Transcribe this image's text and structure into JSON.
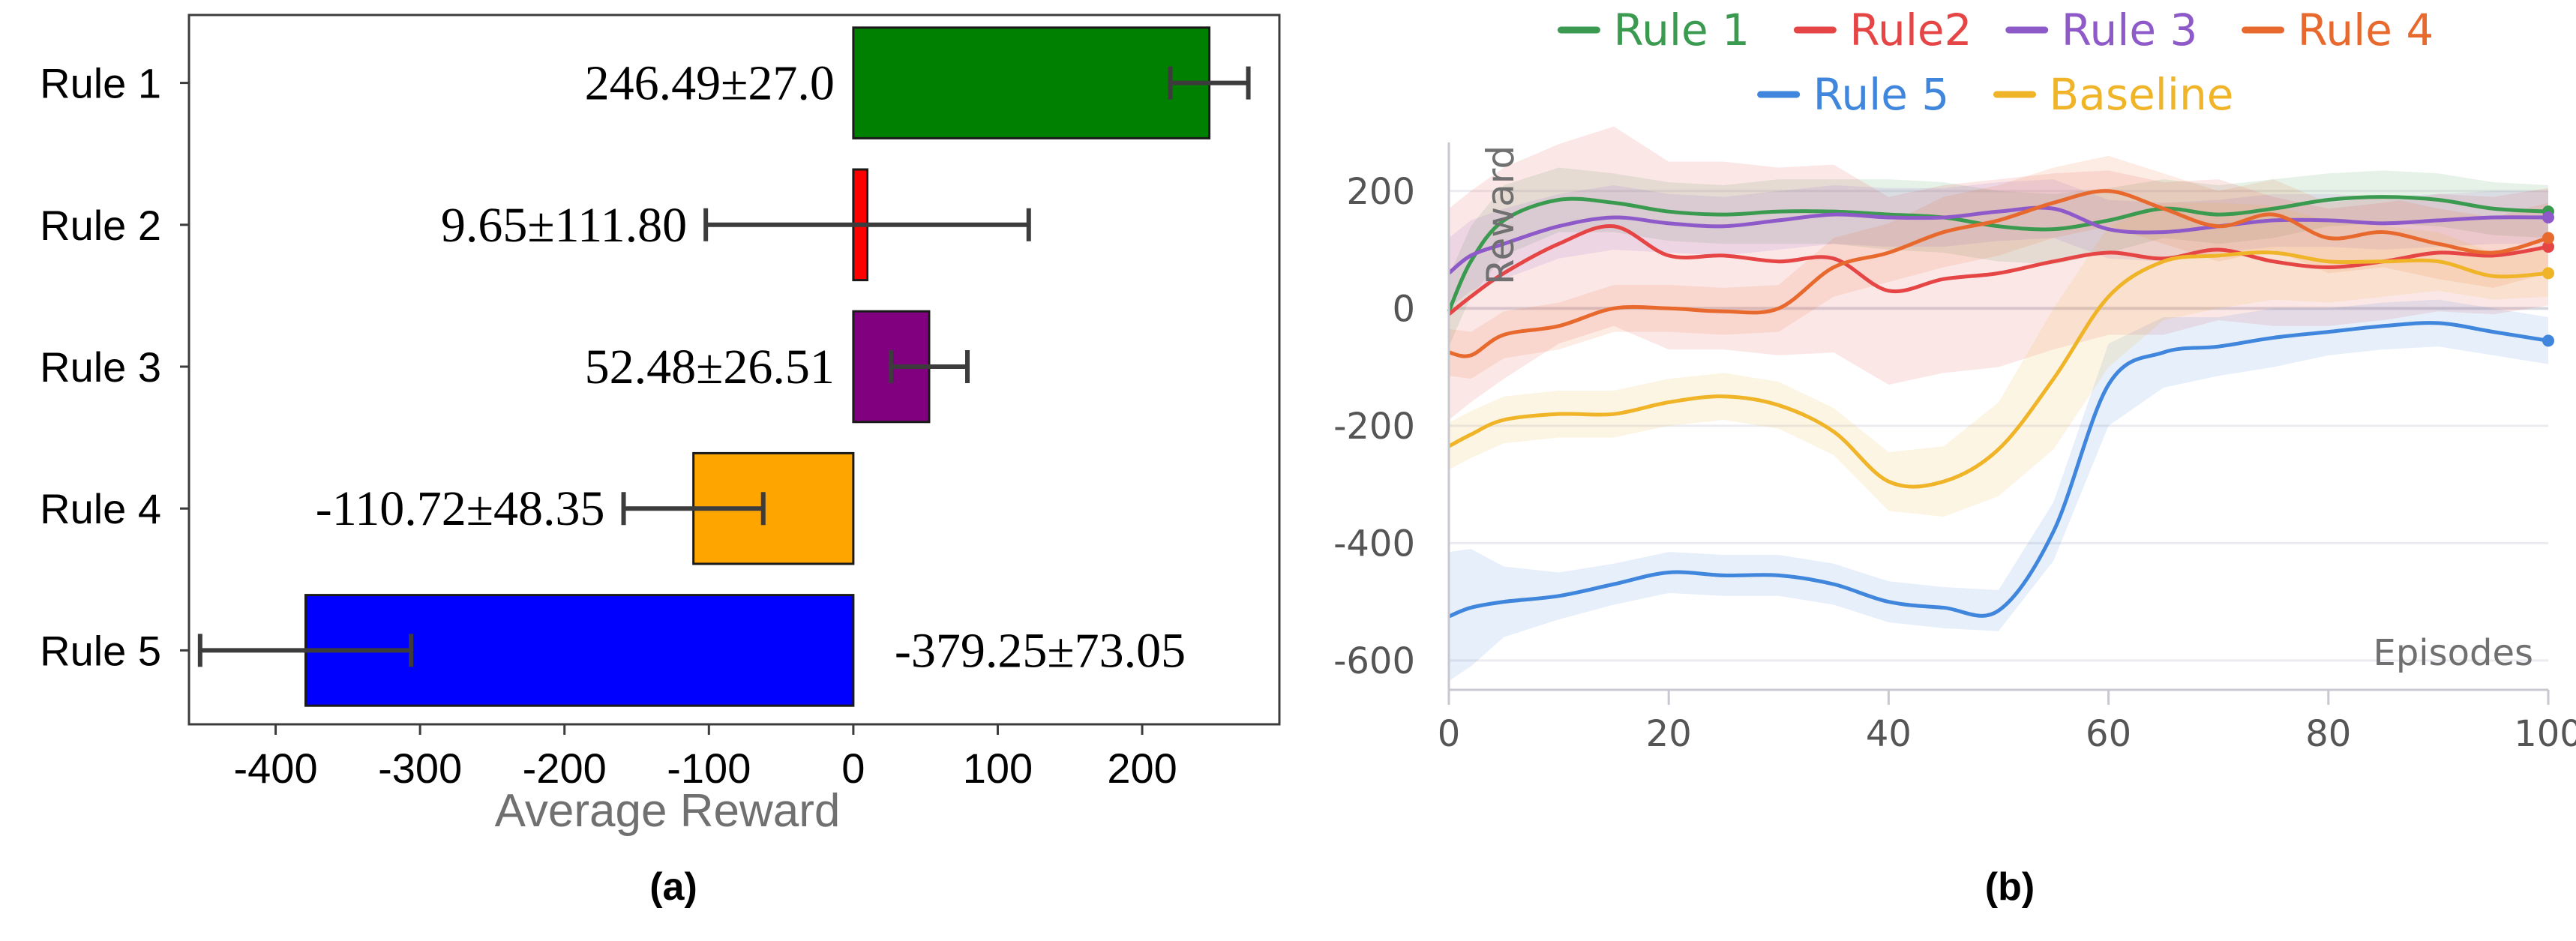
{
  "chart_data": [
    {
      "panel_label": "(a)",
      "type": "bar",
      "orientation": "horizontal",
      "categories": [
        "Rule 1",
        "Rule 2",
        "Rule 3",
        "Rule 4",
        "Rule 5"
      ],
      "values": [
        246.49,
        9.65,
        52.48,
        -110.72,
        -379.25
      ],
      "errors": [
        27.0,
        111.8,
        26.51,
        48.35,
        73.05
      ],
      "data_labels": [
        "246.49±27.0",
        "9.65±111.80",
        "52.48±26.51",
        "-110.72±48.35",
        "-379.25±73.05"
      ],
      "colors": [
        "#008000",
        "#ff0000",
        "#800080",
        "#ffa500",
        "#0000ff"
      ],
      "xlabel": "Average Reward",
      "ylabel": "",
      "xlim": [
        -460,
        295
      ],
      "xticks": [
        -400,
        -300,
        -200,
        -100,
        0,
        100,
        200
      ],
      "xtick_labels": [
        "-400",
        "-300",
        "-200",
        "-100",
        "0",
        "100",
        "200"
      ],
      "grid": false
    },
    {
      "panel_label": "(b)",
      "type": "line",
      "title": "",
      "xlabel": "Episodes",
      "ylabel": "Reward",
      "xlim": [
        0,
        100
      ],
      "ylim": [
        -650,
        270
      ],
      "xticks": [
        0,
        20,
        40,
        60,
        80,
        100
      ],
      "xtick_labels": [
        "0",
        "20",
        "40",
        "60",
        "80",
        "100"
      ],
      "yticks": [
        -600,
        -400,
        -200,
        0,
        200
      ],
      "ytick_labels": [
        "-600",
        "-400",
        "-200",
        "0",
        "200"
      ],
      "grid": true,
      "legend_position": "top",
      "x": [
        0,
        2,
        5,
        10,
        15,
        20,
        25,
        30,
        35,
        40,
        45,
        50,
        55,
        60,
        65,
        70,
        75,
        80,
        85,
        90,
        95,
        100
      ],
      "series": [
        {
          "name": "Rule 1",
          "color": "#3a9a4f",
          "values": [
            -5,
            80,
            150,
            185,
            180,
            165,
            160,
            165,
            165,
            160,
            155,
            140,
            135,
            150,
            170,
            160,
            170,
            185,
            190,
            185,
            170,
            165
          ],
          "band": [
            60,
            60,
            60,
            55,
            50,
            50,
            50,
            55,
            55,
            60,
            60,
            60,
            60,
            55,
            50,
            50,
            50,
            45,
            45,
            45,
            45,
            45
          ]
        },
        {
          "name": "Rule2",
          "color": "#e64545",
          "values": [
            -10,
            20,
            60,
            110,
            140,
            90,
            90,
            80,
            85,
            30,
            50,
            60,
            80,
            95,
            85,
            100,
            80,
            70,
            80,
            95,
            90,
            105
          ],
          "band": [
            180,
            180,
            180,
            170,
            170,
            160,
            160,
            160,
            160,
            160,
            160,
            160,
            150,
            140,
            130,
            120,
            110,
            100,
            100,
            100,
            100,
            100
          ]
        },
        {
          "name": "Rule 3",
          "color": "#8e59c8",
          "values": [
            60,
            90,
            110,
            140,
            155,
            145,
            140,
            150,
            160,
            155,
            155,
            165,
            170,
            135,
            130,
            140,
            150,
            150,
            145,
            150,
            155,
            155
          ],
          "band": [
            60,
            60,
            60,
            55,
            55,
            50,
            50,
            50,
            50,
            50,
            50,
            50,
            50,
            50,
            50,
            45,
            45,
            45,
            45,
            45,
            45,
            45
          ]
        },
        {
          "name": "Rule 4",
          "color": "#e8692e",
          "values": [
            -75,
            -80,
            -45,
            -30,
            0,
            0,
            -5,
            0,
            70,
            95,
            130,
            150,
            180,
            200,
            170,
            140,
            160,
            120,
            130,
            110,
            95,
            120
          ],
          "band": [
            40,
            40,
            40,
            40,
            40,
            40,
            40,
            40,
            50,
            50,
            60,
            60,
            60,
            60,
            60,
            60,
            60,
            60,
            60,
            60,
            60,
            60
          ]
        },
        {
          "name": "Rule 5",
          "color": "#3f86dc",
          "values": [
            -525,
            -510,
            -500,
            -490,
            -470,
            -450,
            -455,
            -455,
            -470,
            -500,
            -510,
            -515,
            -380,
            -130,
            -75,
            -65,
            -50,
            -40,
            -30,
            -25,
            -40,
            -55
          ],
          "band": [
            110,
            100,
            60,
            40,
            35,
            35,
            35,
            35,
            35,
            35,
            35,
            35,
            50,
            70,
            60,
            50,
            50,
            40,
            40,
            40,
            40,
            40
          ]
        },
        {
          "name": "Baseline",
          "color": "#f0b429",
          "values": [
            -235,
            -215,
            -190,
            -180,
            -180,
            -160,
            -150,
            -165,
            -210,
            -295,
            -295,
            -240,
            -120,
            20,
            80,
            90,
            95,
            80,
            80,
            80,
            55,
            60
          ],
          "band": [
            40,
            40,
            40,
            40,
            40,
            40,
            40,
            40,
            40,
            50,
            60,
            80,
            120,
            120,
            100,
            90,
            80,
            70,
            60,
            50,
            40,
            40
          ]
        }
      ]
    }
  ]
}
